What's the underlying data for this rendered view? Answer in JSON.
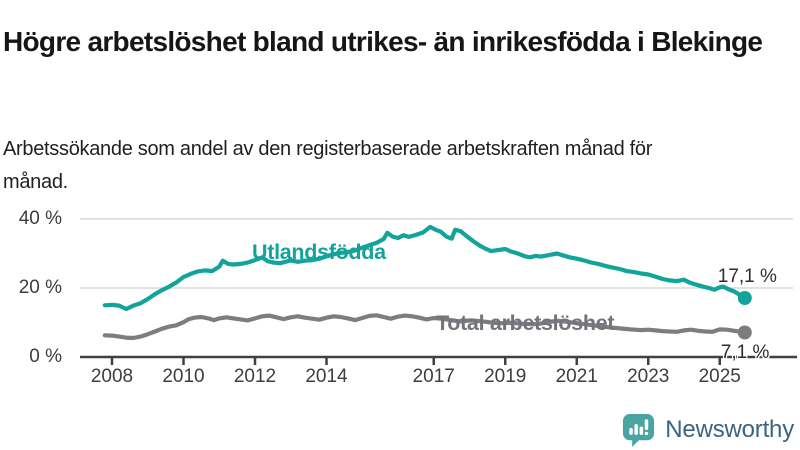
{
  "header": {
    "title": "Högre arbetslöshet bland utrikes- än inrikesfödda i Blekinge",
    "subtitle": "Arbetssökande som andel av den registerbaserade arbetskraften månad för månad."
  },
  "chart_data": {
    "type": "line",
    "title": "",
    "xlabel": "",
    "ylabel": "",
    "xlim": [
      2007.8,
      2027.2
    ],
    "ylim": [
      0,
      42
    ],
    "grid": "horizontal",
    "legend_position": "inline-labels",
    "colors": {
      "grid": "#d9d9d9",
      "axis": "#404040",
      "axis_text": "#3d3d3d",
      "value_label": "#2d2d2d"
    },
    "y_ticks": [
      {
        "value": 0,
        "label": "0 %"
      },
      {
        "value": 20,
        "label": "20 %"
      },
      {
        "value": 40,
        "label": "40 %"
      }
    ],
    "x_ticks": [
      {
        "year": 2008,
        "label": "2008"
      },
      {
        "year": 2010,
        "label": "2010"
      },
      {
        "year": 2012,
        "label": "2012"
      },
      {
        "year": 2014,
        "label": "2014"
      },
      {
        "year": 2017,
        "label": "2017"
      },
      {
        "year": 2019,
        "label": "2019"
      },
      {
        "year": 2021,
        "label": "2021"
      },
      {
        "year": 2023,
        "label": "2023"
      },
      {
        "year": 2025,
        "label": "2025"
      }
    ],
    "series": [
      {
        "name": "Utlandsfödda",
        "color": "#12a39a",
        "label_color": "#12a39a",
        "end_label": "17,1 %",
        "end_value": 17.1,
        "points": [
          [
            2007.8,
            15.0
          ],
          [
            2008.0,
            15.1
          ],
          [
            2008.2,
            14.9
          ],
          [
            2008.4,
            13.9
          ],
          [
            2008.6,
            14.9
          ],
          [
            2008.8,
            15.6
          ],
          [
            2009.0,
            16.8
          ],
          [
            2009.2,
            18.2
          ],
          [
            2009.4,
            19.4
          ],
          [
            2009.6,
            20.4
          ],
          [
            2009.8,
            21.6
          ],
          [
            2010.0,
            23.2
          ],
          [
            2010.2,
            24.1
          ],
          [
            2010.4,
            24.8
          ],
          [
            2010.6,
            25.1
          ],
          [
            2010.8,
            24.9
          ],
          [
            2011.0,
            26.2
          ],
          [
            2011.1,
            27.9
          ],
          [
            2011.25,
            27.0
          ],
          [
            2011.4,
            26.8
          ],
          [
            2011.6,
            27.0
          ],
          [
            2011.8,
            27.4
          ],
          [
            2012.0,
            28.1
          ],
          [
            2012.2,
            28.9
          ],
          [
            2012.35,
            27.8
          ],
          [
            2012.5,
            27.4
          ],
          [
            2012.7,
            27.2
          ],
          [
            2012.85,
            27.6
          ],
          [
            2013.0,
            28.0
          ],
          [
            2013.2,
            27.6
          ],
          [
            2013.4,
            27.9
          ],
          [
            2013.6,
            28.1
          ],
          [
            2013.8,
            28.5
          ],
          [
            2014.0,
            29.2
          ],
          [
            2014.2,
            29.8
          ],
          [
            2014.4,
            30.2
          ],
          [
            2014.6,
            30.4
          ],
          [
            2014.8,
            30.9
          ],
          [
            2015.0,
            31.7
          ],
          [
            2015.2,
            32.4
          ],
          [
            2015.4,
            33.1
          ],
          [
            2015.6,
            34.2
          ],
          [
            2015.7,
            36.0
          ],
          [
            2015.85,
            34.9
          ],
          [
            2016.0,
            34.5
          ],
          [
            2016.15,
            35.3
          ],
          [
            2016.3,
            34.8
          ],
          [
            2016.5,
            35.4
          ],
          [
            2016.7,
            36.1
          ],
          [
            2016.9,
            37.7
          ],
          [
            2017.05,
            36.9
          ],
          [
            2017.2,
            36.3
          ],
          [
            2017.35,
            34.9
          ],
          [
            2017.5,
            34.3
          ],
          [
            2017.6,
            36.9
          ],
          [
            2017.75,
            36.5
          ],
          [
            2017.9,
            35.2
          ],
          [
            2018.1,
            33.6
          ],
          [
            2018.3,
            32.2
          ],
          [
            2018.45,
            31.4
          ],
          [
            2018.6,
            30.7
          ],
          [
            2018.8,
            31.0
          ],
          [
            2019.0,
            31.3
          ],
          [
            2019.15,
            30.6
          ],
          [
            2019.35,
            30.0
          ],
          [
            2019.55,
            29.2
          ],
          [
            2019.7,
            28.9
          ],
          [
            2019.85,
            29.3
          ],
          [
            2020.0,
            29.1
          ],
          [
            2020.2,
            29.5
          ],
          [
            2020.45,
            30.0
          ],
          [
            2020.6,
            29.5
          ],
          [
            2020.8,
            28.9
          ],
          [
            2021.0,
            28.5
          ],
          [
            2021.2,
            28.0
          ],
          [
            2021.4,
            27.4
          ],
          [
            2021.6,
            27.0
          ],
          [
            2021.8,
            26.4
          ],
          [
            2022.0,
            25.9
          ],
          [
            2022.2,
            25.5
          ],
          [
            2022.4,
            24.9
          ],
          [
            2022.6,
            24.6
          ],
          [
            2022.8,
            24.2
          ],
          [
            2023.0,
            23.9
          ],
          [
            2023.2,
            23.3
          ],
          [
            2023.4,
            22.6
          ],
          [
            2023.6,
            22.2
          ],
          [
            2023.8,
            22.0
          ],
          [
            2024.0,
            22.4
          ],
          [
            2024.15,
            21.6
          ],
          [
            2024.3,
            21.1
          ],
          [
            2024.5,
            20.5
          ],
          [
            2024.7,
            20.0
          ],
          [
            2024.85,
            19.5
          ],
          [
            2025.0,
            20.2
          ],
          [
            2025.1,
            20.4
          ],
          [
            2025.25,
            19.6
          ],
          [
            2025.4,
            19.0
          ],
          [
            2025.55,
            18.1
          ],
          [
            2025.7,
            17.1
          ]
        ]
      },
      {
        "name": "Total arbetslöshet",
        "color": "#7d7d7d",
        "label_color": "#73737b",
        "end_label": "7,1 %",
        "end_value": 7.1,
        "points": [
          [
            2007.8,
            6.3
          ],
          [
            2008.0,
            6.2
          ],
          [
            2008.2,
            5.9
          ],
          [
            2008.4,
            5.6
          ],
          [
            2008.6,
            5.5
          ],
          [
            2008.8,
            5.9
          ],
          [
            2009.0,
            6.6
          ],
          [
            2009.2,
            7.4
          ],
          [
            2009.4,
            8.2
          ],
          [
            2009.6,
            8.8
          ],
          [
            2009.8,
            9.2
          ],
          [
            2010.0,
            10.1
          ],
          [
            2010.15,
            11.0
          ],
          [
            2010.3,
            11.4
          ],
          [
            2010.5,
            11.6
          ],
          [
            2010.7,
            11.2
          ],
          [
            2010.85,
            10.7
          ],
          [
            2011.0,
            11.2
          ],
          [
            2011.2,
            11.5
          ],
          [
            2011.4,
            11.2
          ],
          [
            2011.6,
            10.9
          ],
          [
            2011.8,
            10.6
          ],
          [
            2012.0,
            11.2
          ],
          [
            2012.2,
            11.8
          ],
          [
            2012.4,
            12.0
          ],
          [
            2012.6,
            11.5
          ],
          [
            2012.8,
            11.0
          ],
          [
            2013.0,
            11.5
          ],
          [
            2013.2,
            11.8
          ],
          [
            2013.4,
            11.4
          ],
          [
            2013.6,
            11.1
          ],
          [
            2013.8,
            10.8
          ],
          [
            2014.0,
            11.4
          ],
          [
            2014.2,
            11.8
          ],
          [
            2014.4,
            11.6
          ],
          [
            2014.6,
            11.2
          ],
          [
            2014.8,
            10.7
          ],
          [
            2015.0,
            11.3
          ],
          [
            2015.2,
            11.9
          ],
          [
            2015.4,
            12.1
          ],
          [
            2015.6,
            11.6
          ],
          [
            2015.8,
            11.1
          ],
          [
            2016.0,
            11.7
          ],
          [
            2016.2,
            12.0
          ],
          [
            2016.4,
            11.8
          ],
          [
            2016.6,
            11.4
          ],
          [
            2016.8,
            10.9
          ],
          [
            2017.0,
            11.3
          ],
          [
            2017.2,
            11.1
          ],
          [
            2017.4,
            10.8
          ],
          [
            2017.6,
            10.5
          ],
          [
            2017.8,
            10.3
          ],
          [
            2018.0,
            10.6
          ],
          [
            2018.3,
            10.4
          ],
          [
            2018.6,
            10.0
          ],
          [
            2018.9,
            9.8
          ],
          [
            2019.2,
            9.9
          ],
          [
            2019.5,
            9.6
          ],
          [
            2019.8,
            9.5
          ],
          [
            2020.0,
            9.7
          ],
          [
            2020.3,
            10.3
          ],
          [
            2020.5,
            10.5
          ],
          [
            2020.8,
            10.1
          ],
          [
            2021.0,
            9.8
          ],
          [
            2021.3,
            9.4
          ],
          [
            2021.6,
            9.0
          ],
          [
            2021.9,
            8.6
          ],
          [
            2022.2,
            8.3
          ],
          [
            2022.5,
            8.0
          ],
          [
            2022.8,
            7.8
          ],
          [
            2023.0,
            7.9
          ],
          [
            2023.2,
            7.7
          ],
          [
            2023.4,
            7.5
          ],
          [
            2023.6,
            7.4
          ],
          [
            2023.8,
            7.3
          ],
          [
            2024.0,
            7.7
          ],
          [
            2024.2,
            7.9
          ],
          [
            2024.4,
            7.6
          ],
          [
            2024.6,
            7.4
          ],
          [
            2024.8,
            7.3
          ],
          [
            2025.0,
            8.0
          ],
          [
            2025.2,
            7.9
          ],
          [
            2025.4,
            7.6
          ],
          [
            2025.55,
            7.4
          ],
          [
            2025.7,
            7.1
          ]
        ]
      }
    ]
  },
  "footer": {
    "brand": "Newsworthy",
    "brand_color": "#3b6480",
    "logo_color": "#4aa5a2"
  }
}
